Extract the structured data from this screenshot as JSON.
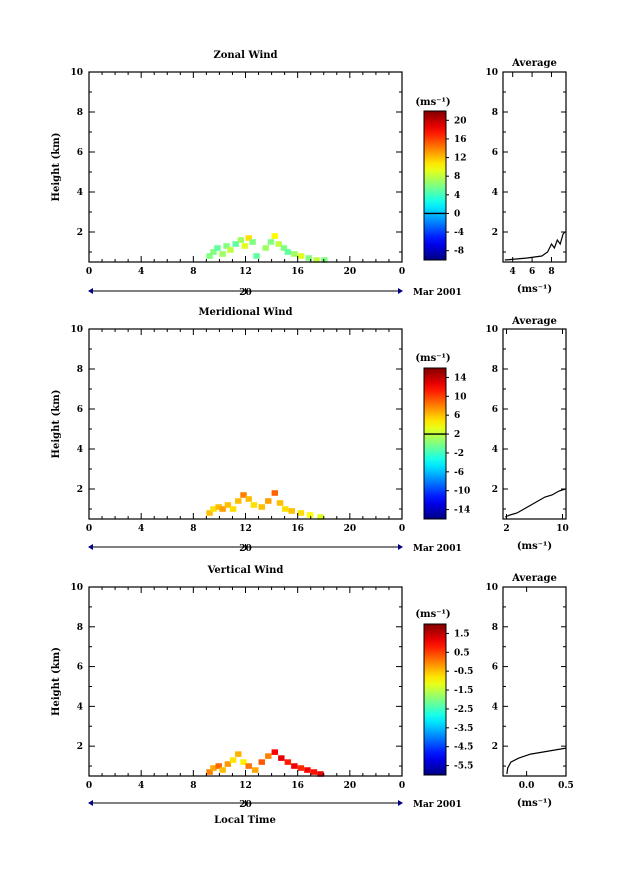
{
  "figure": {
    "xlabel": "Local Time",
    "date_label": "Mar 2001",
    "day_label": "20"
  },
  "chart_data": [
    {
      "type": "heatmap",
      "title": "Zonal Wind",
      "xlabel": "Local Time",
      "ylabel": "Height (km)",
      "xlim": [
        0,
        24
      ],
      "ylim": [
        0.5,
        10
      ],
      "x_ticks": [
        "0",
        "4",
        "8",
        "12",
        "16",
        "20",
        "0"
      ],
      "y_ticks": [
        "2",
        "4",
        "6",
        "8",
        "10"
      ],
      "colorbar": {
        "label": "(ms⁻¹)",
        "ticks": [
          "20",
          "16",
          "12",
          "8",
          "4",
          "0",
          "-4",
          "-8"
        ],
        "range": [
          -10,
          22
        ]
      },
      "cells": [
        {
          "x": 9.0,
          "y": 0.8,
          "v": 6
        },
        {
          "x": 9.3,
          "y": 1.0,
          "v": 6
        },
        {
          "x": 9.6,
          "y": 1.2,
          "v": 5
        },
        {
          "x": 10.0,
          "y": 0.9,
          "v": 7
        },
        {
          "x": 10.3,
          "y": 1.3,
          "v": 6
        },
        {
          "x": 10.6,
          "y": 1.1,
          "v": 8
        },
        {
          "x": 11.0,
          "y": 1.4,
          "v": 5
        },
        {
          "x": 11.4,
          "y": 1.6,
          "v": 7
        },
        {
          "x": 11.7,
          "y": 1.3,
          "v": 9
        },
        {
          "x": 12.0,
          "y": 1.7,
          "v": 11
        },
        {
          "x": 12.3,
          "y": 1.5,
          "v": 6
        },
        {
          "x": 12.6,
          "y": 0.8,
          "v": 5
        },
        {
          "x": 13.3,
          "y": 1.2,
          "v": 7
        },
        {
          "x": 13.7,
          "y": 1.5,
          "v": 6
        },
        {
          "x": 14.0,
          "y": 1.8,
          "v": 10
        },
        {
          "x": 14.3,
          "y": 1.4,
          "v": 8
        },
        {
          "x": 14.7,
          "y": 1.2,
          "v": 6
        },
        {
          "x": 15.0,
          "y": 1.0,
          "v": 5
        },
        {
          "x": 15.5,
          "y": 0.9,
          "v": 7
        },
        {
          "x": 16.0,
          "y": 0.8,
          "v": 9
        },
        {
          "x": 16.6,
          "y": 0.7,
          "v": 6
        },
        {
          "x": 17.2,
          "y": 0.6,
          "v": 8
        },
        {
          "x": 17.8,
          "y": 0.6,
          "v": 6
        }
      ],
      "average": {
        "title": "Average",
        "xlabel": "(ms⁻¹)",
        "xlim": [
          3,
          9.5
        ],
        "x_ticks": [
          "4",
          "6",
          "8"
        ],
        "y_ticks": [
          "2",
          "4",
          "6",
          "8",
          "10"
        ],
        "profile": [
          [
            3.2,
            0.6
          ],
          [
            5.5,
            0.7
          ],
          [
            7.0,
            0.8
          ],
          [
            7.6,
            1.0
          ],
          [
            8.0,
            1.4
          ],
          [
            8.3,
            1.2
          ],
          [
            8.6,
            1.6
          ],
          [
            8.9,
            1.4
          ],
          [
            9.2,
            1.9
          ],
          [
            9.4,
            2.0
          ]
        ]
      }
    },
    {
      "type": "heatmap",
      "title": "Meridional Wind",
      "xlabel": "Local Time",
      "ylabel": "Height (km)",
      "xlim": [
        0,
        24
      ],
      "ylim": [
        0.5,
        10
      ],
      "x_ticks": [
        "0",
        "4",
        "8",
        "12",
        "16",
        "20",
        "0"
      ],
      "y_ticks": [
        "2",
        "4",
        "6",
        "8",
        "10"
      ],
      "colorbar": {
        "label": "(ms⁻¹)",
        "ticks": [
          "14",
          "10",
          "6",
          "2",
          "-2",
          "-6",
          "-10",
          "-14"
        ],
        "range": [
          -16,
          16
        ]
      },
      "cells": [
        {
          "x": 9.0,
          "y": 0.8,
          "v": 6
        },
        {
          "x": 9.3,
          "y": 1.0,
          "v": 5
        },
        {
          "x": 9.7,
          "y": 1.1,
          "v": 6
        },
        {
          "x": 10.0,
          "y": 1.0,
          "v": 7
        },
        {
          "x": 10.4,
          "y": 1.2,
          "v": 6
        },
        {
          "x": 10.8,
          "y": 1.0,
          "v": 5
        },
        {
          "x": 11.2,
          "y": 1.4,
          "v": 6
        },
        {
          "x": 11.6,
          "y": 1.7,
          "v": 8
        },
        {
          "x": 12.0,
          "y": 1.5,
          "v": 6
        },
        {
          "x": 12.4,
          "y": 1.2,
          "v": 5
        },
        {
          "x": 13.0,
          "y": 1.1,
          "v": 6
        },
        {
          "x": 13.5,
          "y": 1.4,
          "v": 7
        },
        {
          "x": 14.0,
          "y": 1.8,
          "v": 9
        },
        {
          "x": 14.4,
          "y": 1.3,
          "v": 6
        },
        {
          "x": 14.8,
          "y": 1.0,
          "v": 5
        },
        {
          "x": 15.3,
          "y": 0.9,
          "v": 6
        },
        {
          "x": 16.0,
          "y": 0.8,
          "v": 5
        },
        {
          "x": 16.7,
          "y": 0.7,
          "v": 4
        },
        {
          "x": 17.5,
          "y": 0.6,
          "v": 3
        }
      ],
      "average": {
        "title": "Average",
        "xlabel": "(ms⁻¹)",
        "xlim": [
          1.5,
          10.5
        ],
        "x_ticks": [
          "2",
          "10"
        ],
        "y_ticks": [
          "2",
          "4",
          "6",
          "8",
          "10"
        ],
        "profile": [
          [
            1.8,
            0.6
          ],
          [
            2.5,
            0.7
          ],
          [
            3.5,
            0.8
          ],
          [
            4.5,
            1.0
          ],
          [
            5.5,
            1.2
          ],
          [
            6.5,
            1.4
          ],
          [
            7.5,
            1.6
          ],
          [
            8.5,
            1.7
          ],
          [
            9.5,
            1.9
          ],
          [
            10.4,
            2.0
          ]
        ]
      }
    },
    {
      "type": "heatmap",
      "title": "Vertical Wind",
      "xlabel": "Local Time",
      "ylabel": "Height (km)",
      "xlim": [
        0,
        24
      ],
      "ylim": [
        0.5,
        10
      ],
      "x_ticks": [
        "0",
        "4",
        "8",
        "12",
        "16",
        "20",
        "0"
      ],
      "y_ticks": [
        "2",
        "4",
        "6",
        "8",
        "10"
      ],
      "colorbar": {
        "label": "(ms⁻¹)",
        "ticks": [
          "1.5",
          "0.5",
          "-0.5",
          "-1.5",
          "-2.5",
          "-3.5",
          "-4.5",
          "-5.5"
        ],
        "range": [
          -6,
          2
        ]
      },
      "cells": [
        {
          "x": 9.0,
          "y": 0.7,
          "v": 0.0
        },
        {
          "x": 9.3,
          "y": 0.9,
          "v": -0.3
        },
        {
          "x": 9.7,
          "y": 1.0,
          "v": 0.2
        },
        {
          "x": 10.0,
          "y": 0.8,
          "v": -0.5
        },
        {
          "x": 10.4,
          "y": 1.1,
          "v": -0.2
        },
        {
          "x": 10.8,
          "y": 1.3,
          "v": -0.8
        },
        {
          "x": 11.2,
          "y": 1.6,
          "v": -0.4
        },
        {
          "x": 11.6,
          "y": 1.2,
          "v": -0.9
        },
        {
          "x": 12.0,
          "y": 1.0,
          "v": 0.1
        },
        {
          "x": 12.5,
          "y": 0.8,
          "v": -0.3
        },
        {
          "x": 13.0,
          "y": 1.2,
          "v": 0.3
        },
        {
          "x": 13.5,
          "y": 1.5,
          "v": 0.0
        },
        {
          "x": 14.0,
          "y": 1.7,
          "v": 1.0
        },
        {
          "x": 14.5,
          "y": 1.4,
          "v": 1.2
        },
        {
          "x": 15.0,
          "y": 1.2,
          "v": 0.8
        },
        {
          "x": 15.5,
          "y": 1.0,
          "v": 1.1
        },
        {
          "x": 16.0,
          "y": 0.9,
          "v": 0.7
        },
        {
          "x": 16.5,
          "y": 0.8,
          "v": 1.0
        },
        {
          "x": 17.0,
          "y": 0.7,
          "v": 0.9
        },
        {
          "x": 17.5,
          "y": 0.6,
          "v": 1.2
        }
      ],
      "average": {
        "title": "Average",
        "xlabel": "(ms⁻¹)",
        "xlim": [
          -0.3,
          0.5
        ],
        "x_ticks": [
          "0.0",
          "0.5"
        ],
        "y_ticks": [
          "2",
          "4",
          "6",
          "8",
          "10"
        ],
        "profile": [
          [
            -0.25,
            0.6
          ],
          [
            -0.24,
            0.9
          ],
          [
            -0.2,
            1.2
          ],
          [
            -0.1,
            1.4
          ],
          [
            0.05,
            1.6
          ],
          [
            0.2,
            1.7
          ],
          [
            0.35,
            1.8
          ],
          [
            0.5,
            1.9
          ]
        ]
      }
    }
  ]
}
